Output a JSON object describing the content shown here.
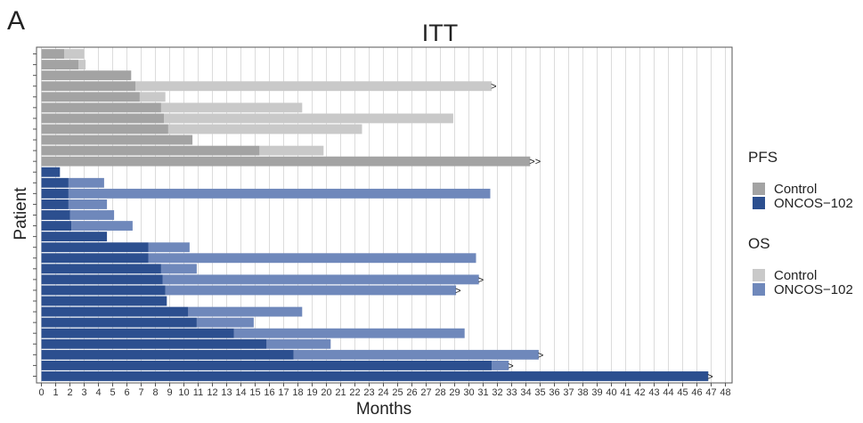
{
  "panel_label": "A",
  "chart_data": {
    "type": "bar",
    "orientation": "horizontal",
    "layout": "swimmer",
    "title": "ITT",
    "xlabel": "Months",
    "ylabel": "Patient",
    "xlim": [
      0,
      48
    ],
    "xticks": [
      0,
      1,
      2,
      3,
      4,
      5,
      6,
      7,
      8,
      9,
      10,
      11,
      12,
      13,
      14,
      15,
      16,
      17,
      18,
      19,
      20,
      21,
      22,
      23,
      24,
      25,
      26,
      27,
      28,
      29,
      30,
      31,
      32,
      33,
      34,
      35,
      36,
      37,
      38,
      39,
      40,
      41,
      42,
      43,
      44,
      45,
      46,
      47,
      48
    ],
    "grid": "vertical",
    "legend_placement": "right",
    "legend": [
      {
        "group": "PFS",
        "items": [
          {
            "label": "Control",
            "color": "#a3a3a3"
          },
          {
            "label": "ONCOS−102",
            "color": "#2c4f8f"
          }
        ]
      },
      {
        "group": "OS",
        "items": [
          {
            "label": "Control",
            "color": "#c9c9c9"
          },
          {
            "label": "ONCOS−102",
            "color": "#6f88bb"
          }
        ]
      }
    ],
    "colors": {
      "control_pfs": "#a3a3a3",
      "control_os": "#c9c9c9",
      "oncos_pfs": "#2c4f8f",
      "oncos_os": "#6f88bb"
    },
    "patients": [
      {
        "arm": "ONCOS-102",
        "pfs": 46.8,
        "os": 46.8,
        "censored": true
      },
      {
        "arm": "ONCOS-102",
        "pfs": 31.6,
        "os": 32.8,
        "censored": true
      },
      {
        "arm": "ONCOS-102",
        "pfs": 17.7,
        "os": 34.9,
        "censored": true
      },
      {
        "arm": "ONCOS-102",
        "pfs": 15.8,
        "os": 20.3,
        "censored": false
      },
      {
        "arm": "ONCOS-102",
        "pfs": 13.5,
        "os": 29.7,
        "censored": false
      },
      {
        "arm": "ONCOS-102",
        "pfs": 10.9,
        "os": 14.9,
        "censored": false
      },
      {
        "arm": "ONCOS-102",
        "pfs": 10.3,
        "os": 18.3,
        "censored": false
      },
      {
        "arm": "ONCOS-102",
        "pfs": 8.8,
        "os": 8.8,
        "censored": false
      },
      {
        "arm": "ONCOS-102",
        "pfs": 8.7,
        "os": 29.1,
        "censored": true
      },
      {
        "arm": "ONCOS-102",
        "pfs": 8.5,
        "os": 30.7,
        "censored": true
      },
      {
        "arm": "ONCOS-102",
        "pfs": 8.4,
        "os": 10.9,
        "censored": false
      },
      {
        "arm": "ONCOS-102",
        "pfs": 7.5,
        "os": 30.5,
        "censored": false
      },
      {
        "arm": "ONCOS-102",
        "pfs": 7.5,
        "os": 10.4,
        "censored": false
      },
      {
        "arm": "ONCOS-102",
        "pfs": 4.6,
        "os": 4.6,
        "censored": false
      },
      {
        "arm": "ONCOS-102",
        "pfs": 2.1,
        "os": 6.4,
        "censored": false
      },
      {
        "arm": "ONCOS-102",
        "pfs": 2.0,
        "os": 5.1,
        "censored": false
      },
      {
        "arm": "ONCOS-102",
        "pfs": 1.9,
        "os": 4.6,
        "censored": false
      },
      {
        "arm": "ONCOS-102",
        "pfs": 1.9,
        "os": 31.5,
        "censored": false
      },
      {
        "arm": "ONCOS-102",
        "pfs": 1.9,
        "os": 4.4,
        "censored": false
      },
      {
        "arm": "ONCOS-102",
        "pfs": 1.3,
        "os": 1.3,
        "censored": false
      },
      {
        "arm": "Control",
        "pfs": 34.3,
        "os": 34.3,
        "censored": true,
        "censor_mark": ">>"
      },
      {
        "arm": "Control",
        "pfs": 15.3,
        "os": 19.8,
        "censored": false
      },
      {
        "arm": "Control",
        "pfs": 10.6,
        "os": 10.6,
        "censored": false
      },
      {
        "arm": "Control",
        "pfs": 8.9,
        "os": 22.5,
        "censored": false
      },
      {
        "arm": "Control",
        "pfs": 8.6,
        "os": 28.9,
        "censored": false
      },
      {
        "arm": "Control",
        "pfs": 8.4,
        "os": 18.3,
        "censored": false
      },
      {
        "arm": "Control",
        "pfs": 6.9,
        "os": 8.7,
        "censored": false
      },
      {
        "arm": "Control",
        "pfs": 6.6,
        "os": 31.6,
        "censored": true
      },
      {
        "arm": "Control",
        "pfs": 6.3,
        "os": 6.3,
        "censored": false
      },
      {
        "arm": "Control",
        "pfs": 2.6,
        "os": 3.1,
        "censored": false
      },
      {
        "arm": "Control",
        "pfs": 1.6,
        "os": 3.0,
        "censored": false
      }
    ]
  }
}
